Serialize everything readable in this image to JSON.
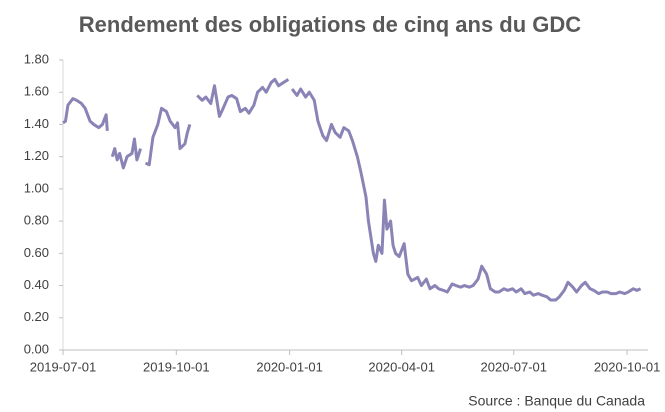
{
  "chart_data": {
    "type": "line",
    "title": "Rendement des obligations de cinq ans du GDC",
    "source": "Source : Banque du Canada",
    "x": [
      "2019-07-01",
      "2019-07-03",
      "2019-07-05",
      "2019-07-09",
      "2019-07-12",
      "2019-07-16",
      "2019-07-19",
      "2019-07-23",
      "2019-07-26",
      "2019-07-30",
      "2019-08-02",
      "2019-08-05",
      "2019-08-06",
      "2019-08-08",
      "2019-08-10",
      "2019-08-12",
      "2019-08-14",
      "2019-08-16",
      "2019-08-19",
      "2019-08-22",
      "2019-08-26",
      "2019-08-28",
      "2019-08-30",
      "2019-09-02",
      "2019-09-04",
      "2019-09-06",
      "2019-09-09",
      "2019-09-12",
      "2019-09-16",
      "2019-09-19",
      "2019-09-23",
      "2019-09-26",
      "2019-09-30",
      "2019-10-02",
      "2019-10-04",
      "2019-10-08",
      "2019-10-10",
      "2019-10-12",
      "2019-10-15",
      "2019-10-18",
      "2019-10-22",
      "2019-10-25",
      "2019-10-29",
      "2019-11-01",
      "2019-11-05",
      "2019-11-08",
      "2019-11-12",
      "2019-11-15",
      "2019-11-19",
      "2019-11-22",
      "2019-11-26",
      "2019-11-29",
      "2019-12-03",
      "2019-12-06",
      "2019-12-10",
      "2019-12-13",
      "2019-12-17",
      "2019-12-20",
      "2019-12-23",
      "2019-12-27",
      "2019-12-31",
      "2020-01-01",
      "2020-01-03",
      "2020-01-07",
      "2020-01-10",
      "2020-01-14",
      "2020-01-17",
      "2020-01-21",
      "2020-01-24",
      "2020-01-28",
      "2020-01-31",
      "2020-02-04",
      "2020-02-07",
      "2020-02-11",
      "2020-02-14",
      "2020-02-18",
      "2020-02-21",
      "2020-02-25",
      "2020-02-28",
      "2020-03-03",
      "2020-03-05",
      "2020-03-09",
      "2020-03-11",
      "2020-03-13",
      "2020-03-16",
      "2020-03-18",
      "2020-03-20",
      "2020-03-23",
      "2020-03-25",
      "2020-03-27",
      "2020-03-30",
      "2020-04-01",
      "2020-04-03",
      "2020-04-06",
      "2020-04-09",
      "2020-04-14",
      "2020-04-17",
      "2020-04-21",
      "2020-04-24",
      "2020-04-28",
      "2020-05-01",
      "2020-05-05",
      "2020-05-08",
      "2020-05-12",
      "2020-05-15",
      "2020-05-19",
      "2020-05-22",
      "2020-05-26",
      "2020-05-29",
      "2020-06-02",
      "2020-06-05",
      "2020-06-09",
      "2020-06-12",
      "2020-06-16",
      "2020-06-19",
      "2020-06-23",
      "2020-06-26",
      "2020-06-30",
      "2020-07-03",
      "2020-07-07",
      "2020-07-10",
      "2020-07-14",
      "2020-07-17",
      "2020-07-21",
      "2020-07-24",
      "2020-07-28",
      "2020-07-31",
      "2020-08-04",
      "2020-08-07",
      "2020-08-11",
      "2020-08-14",
      "2020-08-18",
      "2020-08-21",
      "2020-08-25",
      "2020-08-28",
      "2020-09-01",
      "2020-09-04",
      "2020-09-08",
      "2020-09-11",
      "2020-09-15",
      "2020-09-18",
      "2020-09-22",
      "2020-09-25",
      "2020-09-29",
      "2020-10-02",
      "2020-10-06",
      "2020-10-09",
      "2020-10-12",
      "2020-10-13",
      "2020-10-16"
    ],
    "series": [
      {
        "name": "Rendement",
        "color": "#8a84b6",
        "values": [
          1.41,
          1.42,
          1.52,
          1.56,
          1.55,
          1.53,
          1.5,
          1.42,
          1.4,
          1.38,
          1.4,
          1.46,
          1.36,
          null,
          1.2,
          1.25,
          1.18,
          1.22,
          1.13,
          1.2,
          1.22,
          1.31,
          1.18,
          1.25,
          null,
          1.16,
          1.15,
          1.32,
          1.4,
          1.5,
          1.48,
          1.42,
          1.38,
          1.41,
          1.25,
          1.28,
          1.35,
          1.4,
          null,
          1.58,
          1.55,
          1.57,
          1.53,
          1.64,
          1.45,
          1.5,
          1.57,
          1.58,
          1.56,
          1.48,
          1.5,
          1.47,
          1.52,
          1.6,
          1.63,
          1.6,
          1.66,
          1.68,
          1.64,
          1.66,
          1.68,
          null,
          1.62,
          1.58,
          1.62,
          1.57,
          1.6,
          1.55,
          1.42,
          1.33,
          1.3,
          1.4,
          1.35,
          1.32,
          1.38,
          1.36,
          1.3,
          1.2,
          1.1,
          0.95,
          0.8,
          0.6,
          0.55,
          0.65,
          0.6,
          0.93,
          0.75,
          0.8,
          0.65,
          0.6,
          0.58,
          0.62,
          0.66,
          0.47,
          0.43,
          0.45,
          0.4,
          0.44,
          0.38,
          0.4,
          0.38,
          0.37,
          0.36,
          0.41,
          0.4,
          0.39,
          0.4,
          0.39,
          0.4,
          0.44,
          0.52,
          0.47,
          0.38,
          0.36,
          0.36,
          0.38,
          0.37,
          0.38,
          0.36,
          0.38,
          0.35,
          0.36,
          0.34,
          0.35,
          0.34,
          0.33,
          0.31,
          0.31,
          0.33,
          0.37,
          0.42,
          0.39,
          0.36,
          0.4,
          0.42,
          0.38,
          0.37,
          0.35,
          0.36,
          0.36,
          0.35,
          0.35,
          0.36,
          0.35,
          0.36,
          0.38,
          0.37,
          0.38,
          null,
          0.34
        ]
      }
    ],
    "xlim": [
      "2019-07-01",
      "2020-10-18"
    ],
    "xticks": [
      "2019-07-01",
      "2019-10-01",
      "2020-01-01",
      "2020-04-01",
      "2020-07-01",
      "2020-10-01"
    ],
    "ylim": [
      0,
      1.8
    ],
    "yticks": [
      {
        "value": 0,
        "label": "0.00"
      },
      {
        "value": 0.2,
        "label": "0.20"
      },
      {
        "value": 0.4,
        "label": "0.40"
      },
      {
        "value": 0.6,
        "label": "0.60"
      },
      {
        "value": 0.8,
        "label": "0.80"
      },
      {
        "value": 1,
        "label": "1.00"
      },
      {
        "value": 1.2,
        "label": "1.20"
      },
      {
        "value": 1.4,
        "label": "1.40"
      },
      {
        "value": 1.6,
        "label": "1.60"
      },
      {
        "value": 1.8,
        "label": "1.80"
      }
    ],
    "grid": false
  }
}
